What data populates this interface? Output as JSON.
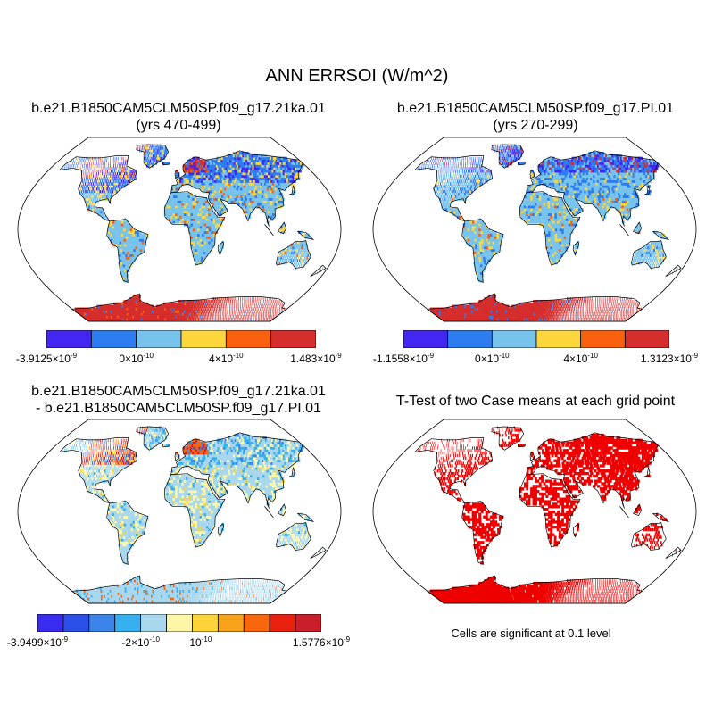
{
  "title": "ANN ERRSOI (W/m^2)",
  "panels": [
    {
      "title_line1": "b.e21.B1850CAM5CLM50SP.f09_g17.21ka.01",
      "title_line2": "(yrs 470-499)",
      "colorbar": {
        "colors": [
          "#4426f2",
          "#2e7df0",
          "#78c3ec",
          "#fbd63c",
          "#f9610f",
          "#d62d2d"
        ],
        "labels": [
          {
            "mant": "-3.9125",
            "exp": "-9"
          },
          {
            "mant": "0",
            "exp": "-10"
          },
          {
            "mant": "4",
            "exp": "-10"
          },
          {
            "mant": "1.483",
            "exp": "-9"
          }
        ]
      }
    },
    {
      "title_line1": "b.e21.B1850CAM5CLM50SP.f09_g17.PI.01",
      "title_line2": "(yrs 270-299)",
      "colorbar": {
        "colors": [
          "#4426f2",
          "#2e7df0",
          "#78c3ec",
          "#fbd63c",
          "#f9610f",
          "#d62d2d"
        ],
        "labels": [
          {
            "mant": "-1.1558",
            "exp": "-9"
          },
          {
            "mant": "0",
            "exp": "-10"
          },
          {
            "mant": "4",
            "exp": "-10"
          },
          {
            "mant": "1.3123",
            "exp": "-9"
          }
        ]
      }
    },
    {
      "title_line1": "b.e21.B1850CAM5CLM50SP.f09_g17.21ka.01",
      "title_line2": "- b.e21.B1850CAM5CLM50SP.f09_g17.PI.01",
      "colorbar": {
        "colors": [
          "#3a2bf0",
          "#2b50e8",
          "#3b84ea",
          "#36b0ee",
          "#a8d7ee",
          "#fdf6a6",
          "#fcd43a",
          "#f9a31d",
          "#f8660e",
          "#e8210e",
          "#c91f2a"
        ],
        "labels": [
          {
            "mant": "-3.9499",
            "exp": "-9"
          },
          {
            "mant": "-2",
            "exp": "-10"
          },
          {
            "mant": "10",
            "exp": "-10",
            "plain": true
          },
          {
            "mant": "1.5776",
            "exp": "-9"
          }
        ]
      }
    },
    {
      "title_line1": "T-Test of two Case means at each grid point",
      "note": "Cells are significant at 0.1 level",
      "sig_color": "#ee0000"
    }
  ]
}
